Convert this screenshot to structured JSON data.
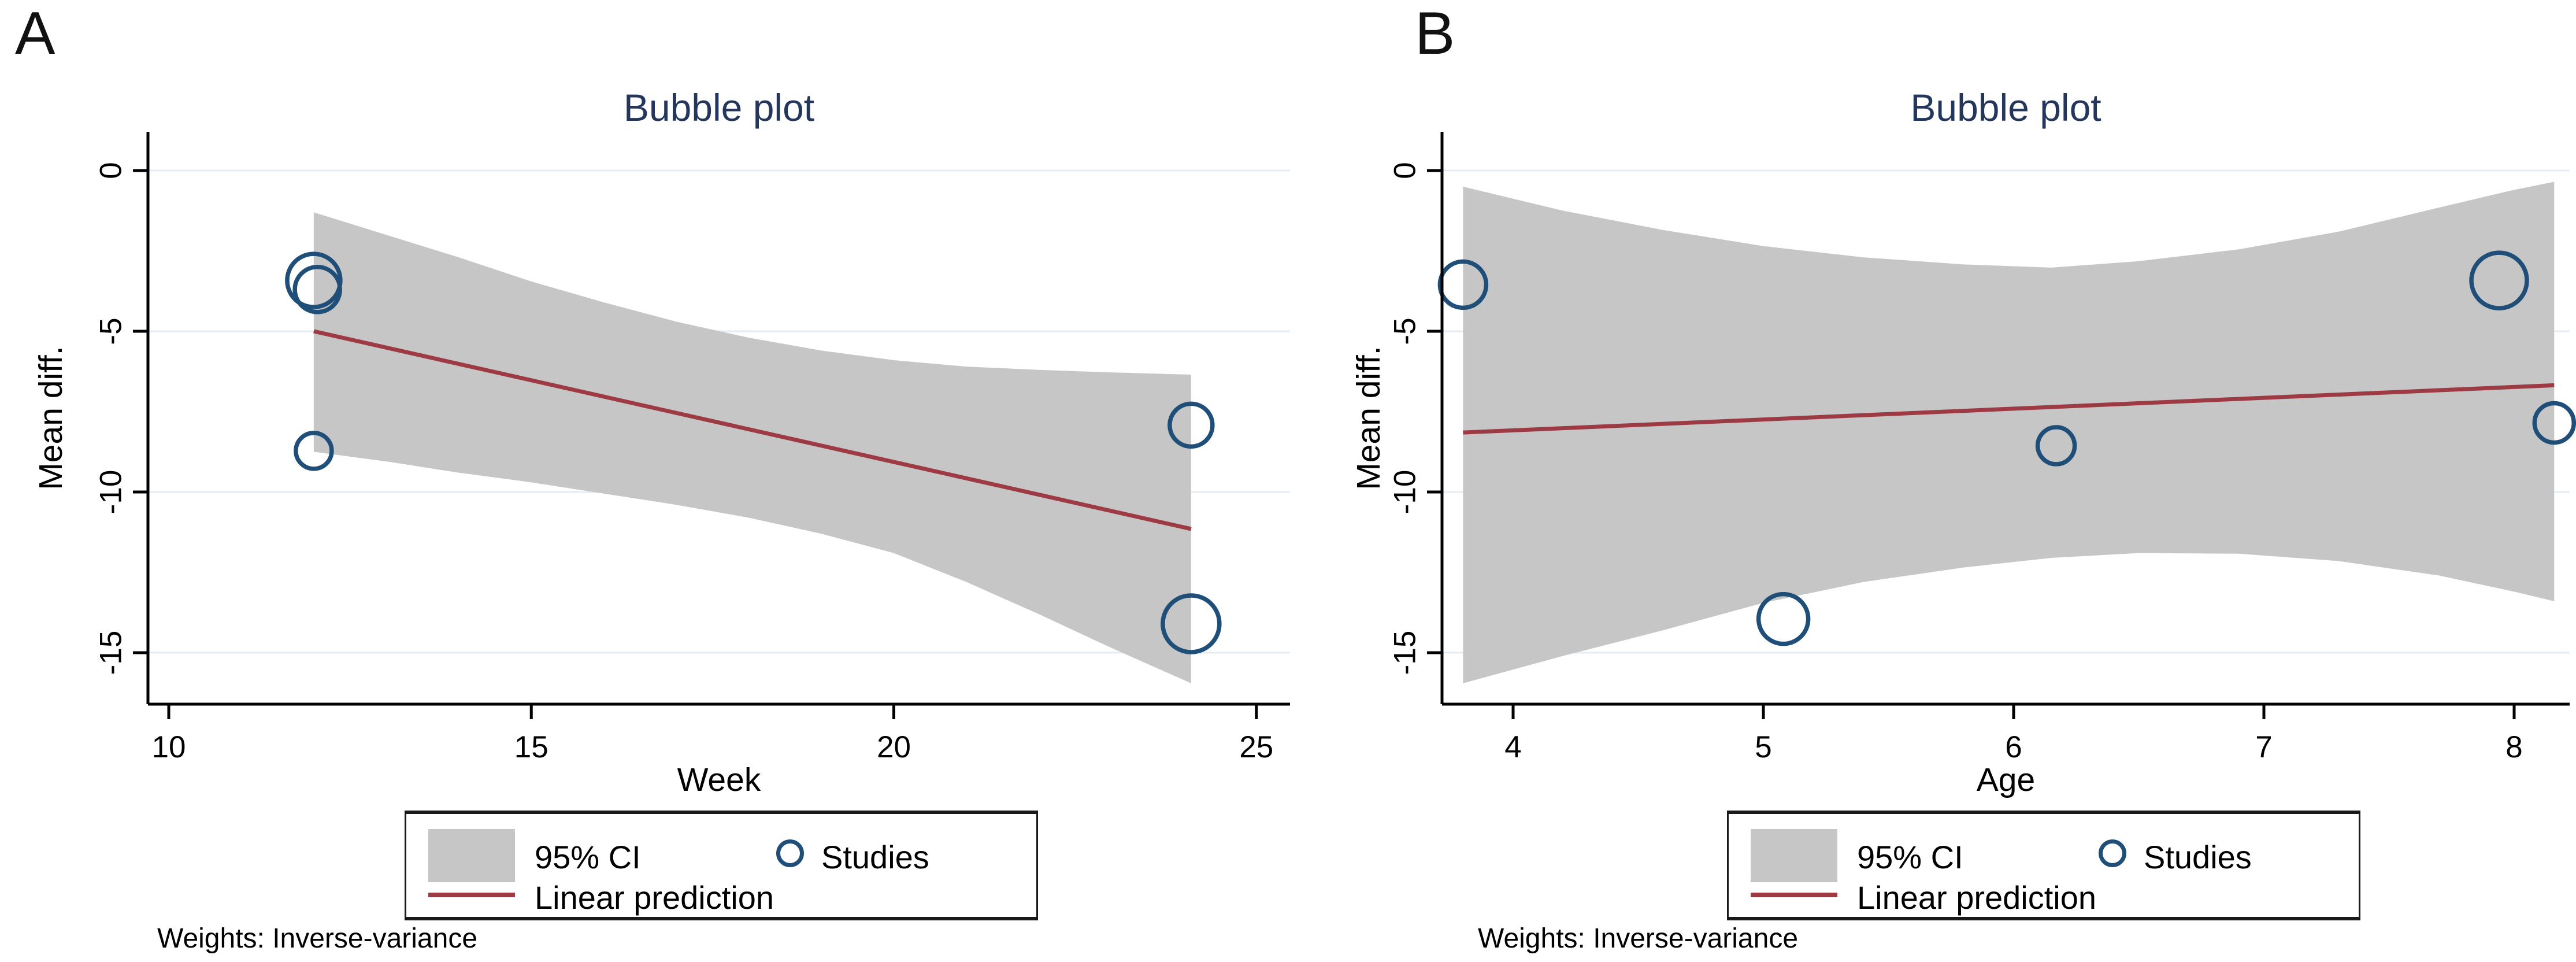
{
  "figure": {
    "colors": {
      "title_navy": "#24365c",
      "ci_band_gray": "#c6c6c6",
      "regression_red": "#9d3a44",
      "bubble_navy": "#1f4e79",
      "gridline_blue": "#e4edf4",
      "axis_black": "#000000"
    },
    "panels": [
      {
        "letter": "A",
        "title": "Bubble plot",
        "xlabel": "Week",
        "ylabel": "Mean diff.",
        "note": "Weights: Inverse-variance",
        "legend": {
          "ci": "95% CI",
          "studies": "Studies",
          "line": "Linear prediction"
        }
      },
      {
        "letter": "B",
        "title": "Bubble plot",
        "xlabel": "Age",
        "ylabel": "Mean diff.",
        "note": "Weights: Inverse-variance",
        "legend": {
          "ci": "95% CI",
          "studies": "Studies",
          "line": "Linear prediction"
        }
      }
    ]
  },
  "chart_data": [
    {
      "type": "scatter",
      "subtype": "meta-regression bubble plot",
      "title": "Bubble plot",
      "xlabel": "Week",
      "ylabel": "Mean diff.",
      "x_ticks": [
        10,
        15,
        20,
        25
      ],
      "y_ticks": [
        0,
        -5,
        -10,
        -15
      ],
      "xlim": [
        9.71,
        25.45
      ],
      "ylim": [
        -16.6,
        1.2
      ],
      "grid": "horizontal-only",
      "legend_position": "below-center",
      "legend": [
        "95% CI",
        "Studies",
        "Linear prediction"
      ],
      "note": "Weights: Inverse-variance",
      "regression_line": {
        "x": [
          12.0,
          24.1
        ],
        "y": [
          -5.0,
          -11.15
        ]
      },
      "ci_band": {
        "x": [
          12.0,
          13.0,
          14.0,
          15.0,
          16.0,
          17.0,
          18.0,
          19.0,
          20.0,
          21.0,
          22.0,
          23.0,
          24.1
        ],
        "upper": [
          -1.3,
          -2.0,
          -2.7,
          -3.45,
          -4.1,
          -4.7,
          -5.2,
          -5.6,
          -5.9,
          -6.1,
          -6.2,
          -6.28,
          -6.35
        ],
        "lower": [
          -8.75,
          -9.05,
          -9.4,
          -9.7,
          -10.05,
          -10.4,
          -10.8,
          -11.3,
          -11.9,
          -12.8,
          -13.8,
          -14.85,
          -15.95
        ]
      },
      "studies": [
        {
          "x": 12.0,
          "y": -3.42,
          "r": 46
        },
        {
          "x": 12.05,
          "y": -3.7,
          "r": 39
        },
        {
          "x": 12.0,
          "y": -8.72,
          "r": 31
        },
        {
          "x": 24.1,
          "y": -7.92,
          "r": 37
        },
        {
          "x": 24.1,
          "y": -14.1,
          "r": 49
        }
      ]
    },
    {
      "type": "scatter",
      "subtype": "meta-regression bubble plot",
      "title": "Bubble plot",
      "xlabel": "Age",
      "ylabel": "Mean diff.",
      "x_ticks": [
        4,
        5,
        6,
        7,
        8
      ],
      "y_ticks": [
        0,
        -5,
        -10,
        -15
      ],
      "xlim": [
        3.716,
        8.22
      ],
      "ylim": [
        -16.6,
        1.2
      ],
      "grid": "horizontal-only",
      "legend_position": "below-center",
      "legend": [
        "95% CI",
        "Studies",
        "Linear prediction"
      ],
      "note": "Weights: Inverse-variance",
      "regression_line": {
        "x": [
          3.8,
          8.16
        ],
        "y": [
          -8.15,
          -6.68
        ]
      },
      "ci_band": {
        "x": [
          3.8,
          4.2,
          4.6,
          5.0,
          5.4,
          5.8,
          6.15,
          6.5,
          6.9,
          7.3,
          7.7,
          8.0,
          8.16
        ],
        "upper": [
          -0.5,
          -1.25,
          -1.85,
          -2.35,
          -2.7,
          -2.92,
          -3.02,
          -2.82,
          -2.45,
          -1.9,
          -1.15,
          -0.6,
          -0.35
        ],
        "lower": [
          -15.95,
          -15.1,
          -14.3,
          -13.45,
          -12.8,
          -12.35,
          -12.05,
          -11.9,
          -11.92,
          -12.15,
          -12.6,
          -13.1,
          -13.4
        ]
      },
      "studies": [
        {
          "x": 3.8,
          "y": -3.55,
          "r": 40
        },
        {
          "x": 7.94,
          "y": -3.42,
          "r": 48
        },
        {
          "x": 8.16,
          "y": -7.85,
          "r": 34
        },
        {
          "x": 6.17,
          "y": -8.56,
          "r": 32
        },
        {
          "x": 5.08,
          "y": -13.95,
          "r": 43
        }
      ]
    }
  ]
}
